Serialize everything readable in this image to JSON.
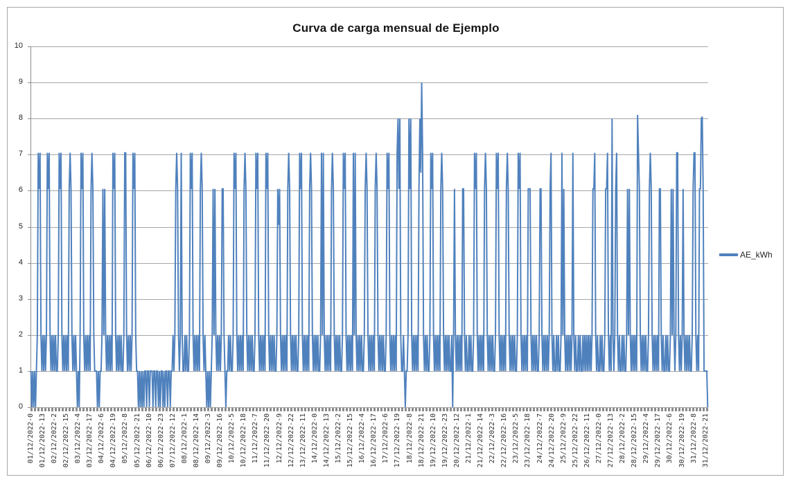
{
  "chart": {
    "title": "Curva de carga mensual de Ejemplo",
    "legend": [
      {
        "label": "AE_kWh",
        "color": "#4F81BD"
      }
    ]
  },
  "colors": {
    "line": "#4F81BD",
    "grid": "#a6a6a6",
    "axis": "#8c8c8c",
    "border": "#a6a6a6",
    "text": "#262626"
  },
  "chart_data": {
    "type": "line",
    "title": "Curva de carga mensual de Ejemplo",
    "xlabel": "",
    "ylabel": "",
    "ylim": [
      0,
      10
    ],
    "y_tick_labels": [
      "0",
      "1",
      "2",
      "3",
      "4",
      "5",
      "6",
      "7",
      "8",
      "9",
      "10"
    ],
    "grid": true,
    "legend_position": "right",
    "x_unit": "hourly categories, 744 points (01/12/2022 h0 - 31/12/2022 h23)",
    "x_tick_step_hours": 13,
    "x_tick_labels": [
      "01/12/2022-0",
      "01/12/2022-13",
      "02/12/2022-2",
      "02/12/2022-15",
      "03/12/2022-4",
      "03/12/2022-17",
      "04/12/2022-6",
      "04/12/2022-19",
      "05/12/2022-8",
      "05/12/2022-21",
      "06/12/2022-10",
      "06/12/2022-23",
      "07/12/2022-12",
      "08/12/2022-1",
      "08/12/2022-14",
      "09/12/2022-3",
      "09/12/2022-16",
      "10/12/2022-5",
      "10/12/2022-18",
      "11/12/2022-7",
      "11/12/2022-20",
      "12/12/2022-9",
      "12/12/2022-22",
      "13/12/2022-11",
      "14/12/2022-0",
      "14/12/2022-13",
      "15/12/2022-2",
      "15/12/2022-15",
      "16/12/2022-4",
      "16/12/2022-17",
      "17/12/2022-6",
      "17/12/2022-19",
      "18/12/2022-8",
      "18/12/2022-21",
      "19/12/2022-10",
      "19/12/2022-23",
      "20/12/2022-12",
      "21/12/2022-1",
      "21/12/2022-14",
      "22/12/2022-3",
      "22/12/2022-16",
      "23/12/2022-5",
      "23/12/2022-18",
      "24/12/2022-7",
      "24/12/2022-20",
      "25/12/2022-9",
      "25/12/2022-22",
      "26/12/2022-11",
      "27/12/2022-0",
      "27/12/2022-13",
      "28/12/2022-2",
      "28/12/2022-15",
      "29/12/2022-4",
      "29/12/2022-17",
      "30/12/2022-6",
      "30/12/2022-19",
      "31/12/2022-8",
      "31/12/2022-21"
    ],
    "series": [
      {
        "name": "AE_kWh",
        "color": "#4F81BD",
        "values_by_day": [
          [
            1,
            0,
            1,
            0,
            1,
            0,
            1,
            2,
            7.05,
            6.05,
            7.05,
            2,
            1,
            2,
            1,
            2,
            1,
            2,
            7.05,
            6.05,
            7.05,
            2,
            1,
            2
          ],
          [
            1,
            2,
            1,
            2,
            1,
            1,
            2,
            7.05,
            6.05,
            7.05,
            2,
            1,
            2,
            1,
            2,
            1,
            2,
            1,
            6.05,
            7.05,
            6.05,
            2,
            1,
            2
          ],
          [
            1,
            2,
            1,
            0,
            1,
            0,
            2,
            7.05,
            6.05,
            7.05,
            2,
            1,
            2,
            1,
            2,
            1,
            2,
            1,
            6.05,
            7.05,
            6.05,
            2,
            1,
            1
          ],
          [
            1,
            0,
            1,
            0,
            1,
            1,
            2,
            6.05,
            2,
            6.05,
            2,
            1,
            2,
            1,
            2,
            1,
            2,
            1,
            7.05,
            6.05,
            7.05,
            2,
            1,
            2
          ],
          [
            1,
            2,
            1,
            2,
            1,
            1,
            2,
            7.05,
            7.05,
            2,
            1,
            2,
            1,
            2,
            1,
            2,
            7.05,
            6.05,
            7.05,
            2,
            1,
            1,
            0,
            1
          ],
          [
            0,
            1,
            0,
            1,
            0,
            1,
            1,
            0,
            1,
            1,
            0,
            1,
            1,
            1,
            0,
            1,
            1,
            0,
            1,
            1,
            0,
            1,
            0,
            1
          ],
          [
            1,
            0,
            1,
            0,
            1,
            1,
            0,
            1,
            1,
            0,
            1,
            1,
            2,
            1,
            2,
            6.05,
            7.05,
            6.05,
            2,
            1,
            2,
            7.05,
            2,
            1
          ],
          [
            1,
            2,
            1,
            2,
            1,
            1,
            2,
            7.05,
            6.05,
            7.05,
            2,
            1,
            2,
            1,
            2,
            1,
            2,
            1,
            6.05,
            7.05,
            6.05,
            2,
            1,
            2
          ],
          [
            1,
            0,
            1,
            0,
            1,
            0,
            1,
            2,
            6.05,
            2,
            6.05,
            2,
            1,
            2,
            1,
            2,
            1,
            2,
            6.05,
            6.05,
            2,
            1,
            0,
            1
          ],
          [
            1,
            2,
            1,
            2,
            1,
            1,
            2,
            7.05,
            6.05,
            7.05,
            2,
            1,
            2,
            1,
            2,
            1,
            2,
            1,
            6.05,
            7.05,
            6.05,
            2,
            1,
            2
          ],
          [
            1,
            2,
            1,
            2,
            1,
            1,
            2,
            7.05,
            6.05,
            7.05,
            2,
            1,
            2,
            1,
            2,
            1,
            2,
            1,
            7.05,
            6.05,
            7.05,
            2,
            1,
            2
          ],
          [
            1,
            2,
            1,
            2,
            1,
            1,
            2,
            6.05,
            5.05,
            6.05,
            2,
            1,
            2,
            1,
            2,
            1,
            2,
            1,
            6.05,
            7.05,
            6.05,
            2,
            1,
            2
          ],
          [
            1,
            2,
            1,
            2,
            1,
            1,
            2,
            7.05,
            6.05,
            7.05,
            2,
            1,
            2,
            1,
            2,
            1,
            2,
            1,
            6.05,
            7.05,
            6.05,
            2,
            1,
            2
          ],
          [
            1,
            2,
            1,
            2,
            1,
            1,
            2,
            7.05,
            2,
            7.05,
            2,
            1,
            2,
            1,
            2,
            1,
            2,
            1,
            6.05,
            7.05,
            6.05,
            2,
            1,
            2
          ],
          [
            1,
            2,
            1,
            2,
            1,
            1,
            2,
            7.05,
            6.05,
            7.05,
            2,
            1,
            2,
            1,
            2,
            1,
            2,
            1,
            7.05,
            2,
            7.05,
            2,
            1,
            2
          ],
          [
            1,
            2,
            1,
            2,
            1,
            1,
            2,
            6.05,
            7.05,
            6.05,
            2,
            1,
            2,
            1,
            2,
            1,
            2,
            1,
            6.05,
            7.05,
            6.05,
            2,
            1,
            2
          ],
          [
            1,
            2,
            1,
            2,
            1,
            1,
            2,
            7.05,
            6.05,
            7.05,
            2,
            1,
            2,
            1,
            2,
            1,
            2,
            1,
            7.05,
            8,
            6.05,
            8,
            2,
            1
          ],
          [
            1,
            2,
            1,
            0,
            1,
            1,
            2,
            8,
            6.05,
            8,
            2,
            1,
            2,
            1,
            2,
            1,
            2,
            1,
            6.05,
            8,
            6.5,
            9,
            7.05,
            2
          ],
          [
            1,
            2,
            1,
            2,
            1,
            1,
            2,
            7.05,
            6.05,
            7.05,
            2,
            1,
            2,
            1,
            2,
            1,
            2,
            1,
            6.05,
            7.05,
            6.05,
            2,
            1,
            2
          ],
          [
            1,
            2,
            1,
            2,
            1,
            1,
            2,
            0,
            2,
            6.05,
            2,
            1,
            2,
            1,
            2,
            1,
            2,
            1,
            6.05,
            6.05,
            2,
            1,
            2,
            1
          ],
          [
            1,
            2,
            1,
            2,
            1,
            1,
            2,
            7.05,
            6.05,
            7.05,
            2,
            1,
            2,
            1,
            2,
            1,
            2,
            1,
            6.05,
            7.05,
            6.05,
            2,
            1,
            2
          ],
          [
            1,
            2,
            1,
            2,
            1,
            1,
            2,
            7.05,
            6.05,
            7.05,
            2,
            1,
            2,
            1,
            2,
            1,
            2,
            1,
            6.05,
            7.05,
            6.05,
            2,
            1,
            2
          ],
          [
            1,
            2,
            1,
            2,
            1,
            1,
            2,
            7.05,
            6.05,
            7.05,
            2,
            1,
            2,
            1,
            2,
            1,
            2,
            1,
            6.05,
            6.05,
            6.05,
            2,
            1,
            2
          ],
          [
            1,
            2,
            1,
            2,
            1,
            1,
            2,
            6.05,
            6.05,
            2,
            1,
            2,
            1,
            2,
            1,
            2,
            1,
            2,
            6.05,
            7.05,
            2,
            1,
            2,
            1
          ],
          [
            1,
            2,
            1,
            2,
            1,
            1,
            2,
            7.05,
            2,
            6.05,
            2,
            1,
            2,
            1,
            2,
            1,
            2,
            1,
            2,
            7.05,
            2,
            1,
            2,
            1
          ],
          [
            1,
            2,
            1,
            2,
            1,
            1,
            2,
            1,
            2,
            1,
            2,
            1,
            2,
            1,
            2,
            1,
            2,
            6.05,
            6.05,
            7.05,
            2,
            1,
            2,
            1
          ],
          [
            1,
            2,
            1,
            2,
            1,
            1,
            2,
            6.05,
            6.05,
            7.05,
            2,
            1,
            2,
            1,
            8,
            2,
            1,
            2,
            6.05,
            7.05,
            2,
            1,
            2,
            1
          ],
          [
            1,
            2,
            1,
            2,
            1,
            1,
            2,
            6.05,
            2,
            6.05,
            2,
            1,
            2,
            1,
            2,
            1,
            2,
            1,
            8.1,
            7.05,
            6.05,
            2,
            1,
            2
          ],
          [
            1,
            2,
            1,
            2,
            1,
            1,
            2,
            6.05,
            7.05,
            6.05,
            2,
            1,
            2,
            1,
            2,
            1,
            2,
            1,
            6.05,
            6.05,
            2,
            1,
            2,
            1
          ],
          [
            1,
            2,
            1,
            2,
            1,
            1,
            2,
            6.05,
            2,
            6.05,
            2,
            1,
            2,
            7.05,
            7.05,
            2,
            1,
            2,
            1,
            2,
            6.05,
            2,
            1,
            2
          ],
          [
            1,
            2,
            1,
            2,
            1,
            1,
            2,
            6.05,
            7.05,
            7.05,
            2,
            1,
            2,
            1,
            6.05,
            6.05,
            8,
            8.05,
            6.05,
            1,
            1,
            1,
            1,
            0
          ]
        ]
      }
    ]
  }
}
